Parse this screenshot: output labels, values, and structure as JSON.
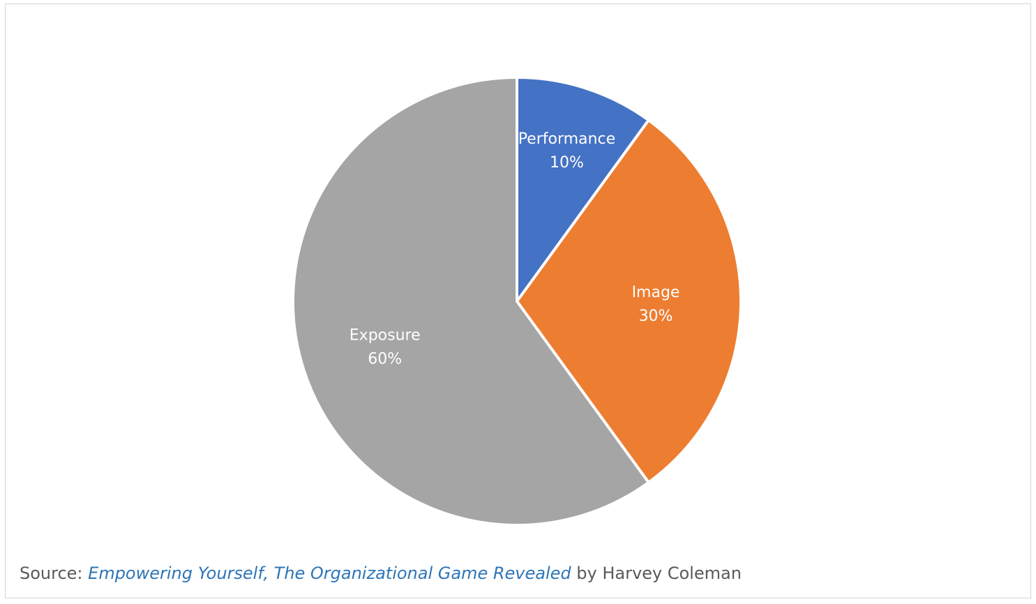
{
  "chart_data": {
    "type": "pie",
    "slices": [
      {
        "label": "Performance",
        "value": 10,
        "value_label": "10%",
        "color": "#4472c4"
      },
      {
        "label": "Image",
        "value": 30,
        "value_label": "30%",
        "color": "#ed7d31"
      },
      {
        "label": "Exposure",
        "value": 60,
        "value_label": "60%",
        "color": "#a5a5a5"
      }
    ],
    "start_angle": "12 o'clock",
    "direction": "clockwise",
    "legend": "none",
    "data_labels": "inside slices"
  },
  "source": {
    "prefix": "Source: ",
    "title": "Empowering Yourself, The Organizational Game Revealed",
    "suffix": " by Harvey Coleman"
  }
}
